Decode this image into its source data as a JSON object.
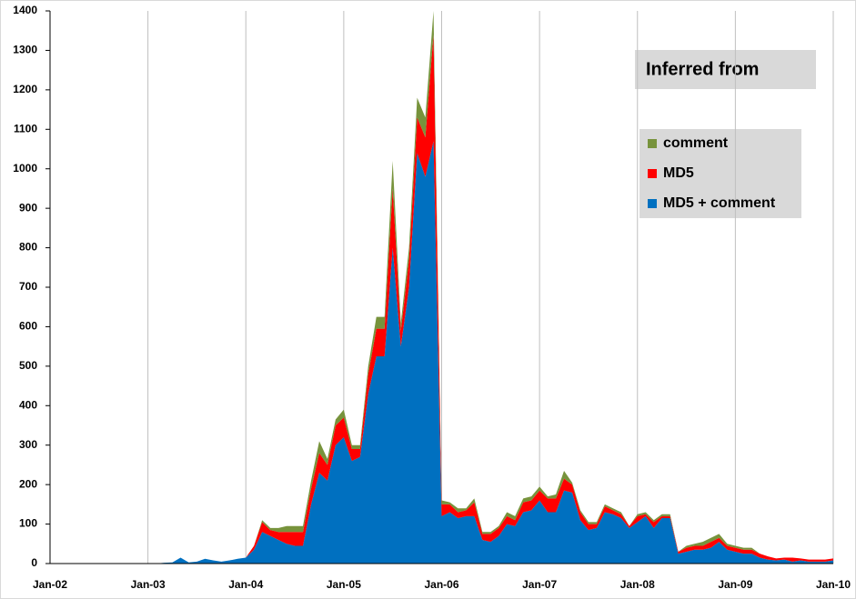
{
  "chart_data": {
    "type": "stacked_area",
    "annotation": "Inferred from",
    "categories": [
      "Jan-02",
      null,
      null,
      null,
      null,
      null,
      null,
      null,
      null,
      null,
      null,
      null,
      "Jan-03",
      null,
      null,
      null,
      null,
      null,
      null,
      null,
      null,
      null,
      null,
      null,
      "Jan-04",
      null,
      null,
      null,
      null,
      null,
      null,
      null,
      null,
      null,
      null,
      null,
      "Jan-05",
      null,
      null,
      null,
      null,
      null,
      null,
      null,
      null,
      null,
      null,
      null,
      "Jan-06",
      null,
      null,
      null,
      null,
      null,
      null,
      null,
      null,
      null,
      null,
      null,
      "Jan-07",
      null,
      null,
      null,
      null,
      null,
      null,
      null,
      null,
      null,
      null,
      null,
      "Jan-08",
      null,
      null,
      null,
      null,
      null,
      null,
      null,
      null,
      null,
      null,
      null,
      "Jan-09",
      null,
      null,
      null,
      null,
      null,
      null,
      null,
      null,
      null,
      null,
      null,
      "Jan-10"
    ],
    "series": [
      {
        "name": "MD5 + comment",
        "color": "#0070c0",
        "values": [
          0,
          0,
          0,
          0,
          0,
          0,
          0,
          0,
          0,
          0,
          0,
          0,
          0,
          0,
          2,
          3,
          15,
          3,
          5,
          12,
          8,
          5,
          8,
          12,
          15,
          35,
          80,
          70,
          60,
          50,
          45,
          45,
          150,
          230,
          210,
          300,
          320,
          260,
          270,
          430,
          525,
          525,
          800,
          550,
          700,
          1040,
          980,
          1070,
          120,
          130,
          115,
          120,
          120,
          60,
          55,
          70,
          100,
          95,
          130,
          135,
          160,
          130,
          130,
          185,
          180,
          110,
          85,
          90,
          130,
          125,
          115,
          90,
          105,
          120,
          90,
          115,
          115,
          25,
          30,
          35,
          35,
          40,
          55,
          35,
          30,
          25,
          25,
          15,
          10,
          8,
          10,
          5,
          8,
          5,
          5,
          5,
          8
        ]
      },
      {
        "name": "MD5",
        "color": "#ff0000",
        "values": [
          0,
          0,
          0,
          0,
          0,
          0,
          0,
          0,
          0,
          0,
          0,
          0,
          0,
          0,
          0,
          0,
          0,
          0,
          0,
          0,
          0,
          0,
          0,
          0,
          0,
          10,
          25,
          15,
          20,
          30,
          35,
          35,
          40,
          50,
          40,
          50,
          50,
          30,
          20,
          50,
          70,
          70,
          150,
          40,
          70,
          90,
          100,
          270,
          30,
          20,
          15,
          15,
          35,
          15,
          20,
          20,
          20,
          15,
          25,
          25,
          25,
          35,
          35,
          30,
          20,
          20,
          15,
          10,
          15,
          10,
          10,
          5,
          15,
          5,
          15,
          5,
          5,
          5,
          10,
          10,
          10,
          15,
          10,
          10,
          10,
          10,
          10,
          10,
          8,
          5,
          5,
          10,
          5,
          5,
          5,
          5,
          5
        ]
      },
      {
        "name": "comment",
        "color": "#77933c",
        "values": [
          0,
          0,
          0,
          0,
          0,
          0,
          0,
          0,
          0,
          0,
          0,
          0,
          0,
          0,
          0,
          0,
          0,
          0,
          0,
          0,
          0,
          0,
          0,
          0,
          0,
          0,
          5,
          5,
          10,
          15,
          15,
          15,
          20,
          30,
          15,
          15,
          20,
          10,
          10,
          20,
          30,
          30,
          70,
          20,
          30,
          50,
          50,
          60,
          10,
          5,
          10,
          5,
          10,
          5,
          5,
          5,
          10,
          10,
          10,
          10,
          10,
          5,
          10,
          20,
          5,
          5,
          5,
          5,
          5,
          5,
          5,
          0,
          5,
          5,
          5,
          5,
          5,
          0,
          5,
          5,
          10,
          10,
          10,
          5,
          5,
          5,
          5,
          0,
          0,
          0,
          0,
          0,
          0,
          0,
          0,
          0,
          0
        ]
      }
    ],
    "ylim": [
      0,
      1400
    ],
    "yticks": [
      0,
      100,
      200,
      300,
      400,
      500,
      600,
      700,
      800,
      900,
      1000,
      1100,
      1200,
      1300,
      1400
    ],
    "grid": "x",
    "legend": "upper right"
  }
}
